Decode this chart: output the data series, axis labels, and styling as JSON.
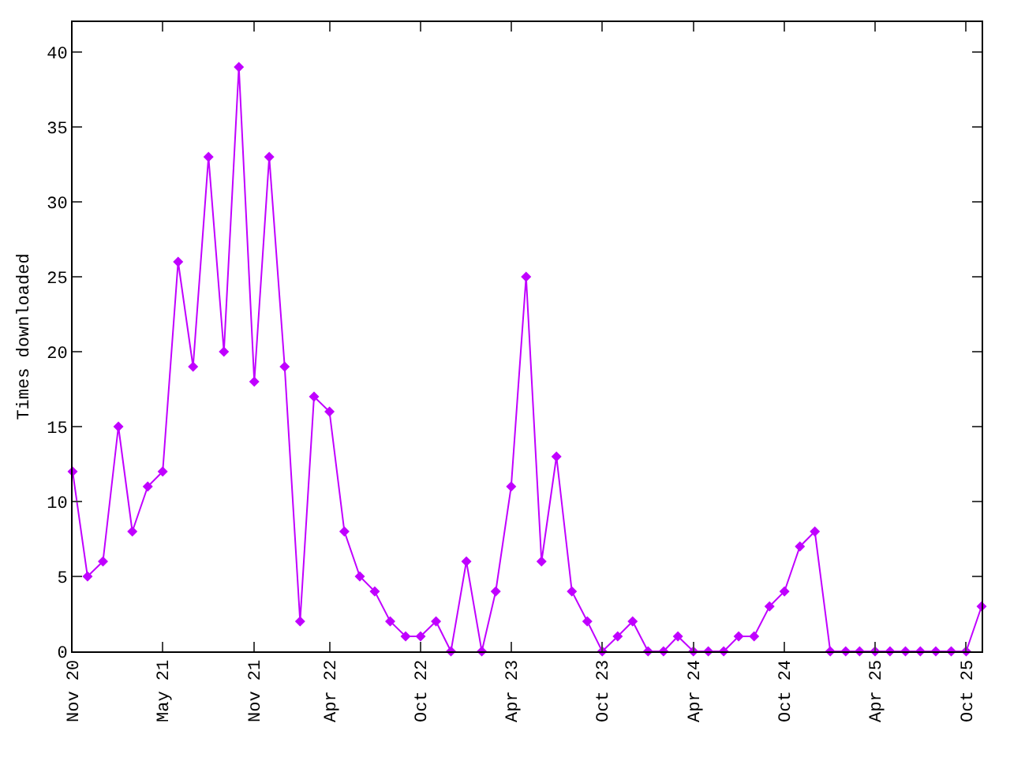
{
  "chart_data": {
    "type": "line",
    "ylabel": "Times downloaded",
    "x": [
      "2020-11",
      "2020-12",
      "2021-01",
      "2021-02",
      "2021-03",
      "2021-04",
      "2021-05",
      "2021-06",
      "2021-07",
      "2021-08",
      "2021-09",
      "2021-10",
      "2021-11",
      "2021-12",
      "2022-01",
      "2022-02",
      "2022-03",
      "2022-04",
      "2022-05",
      "2022-06",
      "2022-07",
      "2022-08",
      "2022-09",
      "2022-10",
      "2022-11",
      "2022-12",
      "2023-01",
      "2023-02",
      "2023-03",
      "2023-04",
      "2023-05",
      "2023-06",
      "2023-07",
      "2023-08",
      "2023-09",
      "2023-10",
      "2023-11",
      "2023-12",
      "2024-01",
      "2024-02",
      "2024-03",
      "2024-04",
      "2024-05",
      "2024-06",
      "2024-07",
      "2024-08",
      "2024-09",
      "2024-10",
      "2024-11",
      "2024-12",
      "2025-01",
      "2025-02",
      "2025-03",
      "2025-04",
      "2025-05",
      "2025-06",
      "2025-07",
      "2025-08",
      "2025-09",
      "2025-10",
      "2025-11"
    ],
    "series": [
      {
        "color": "#c000ff",
        "values": [
          12,
          5,
          6,
          15,
          8,
          11,
          12,
          26,
          19,
          33,
          20,
          39,
          18,
          33,
          19,
          2,
          17,
          16,
          8,
          5,
          4,
          2,
          1,
          1,
          2,
          0,
          6,
          0,
          4,
          11,
          25,
          6,
          13,
          4,
          2,
          0,
          1,
          2,
          0,
          0,
          1,
          0,
          0,
          0,
          1,
          1,
          3,
          4,
          7,
          8,
          0,
          0,
          0,
          0,
          0,
          0,
          0,
          0,
          0,
          0,
          3
        ]
      }
    ],
    "xlim": [
      "2020-11",
      "2025-11"
    ],
    "xticks": [
      {
        "value": "2020-11",
        "label": "Nov 20"
      },
      {
        "value": "2021-05",
        "label": "May 21"
      },
      {
        "value": "2021-11",
        "label": "Nov 21"
      },
      {
        "value": "2022-04",
        "label": "Apr 22"
      },
      {
        "value": "2022-10",
        "label": "Oct 22"
      },
      {
        "value": "2023-04",
        "label": "Apr 23"
      },
      {
        "value": "2023-10",
        "label": "Oct 23"
      },
      {
        "value": "2024-04",
        "label": "Apr 24"
      },
      {
        "value": "2024-10",
        "label": "Oct 24"
      },
      {
        "value": "2025-04",
        "label": "Apr 25"
      },
      {
        "value": "2025-10",
        "label": "Oct 25"
      }
    ],
    "ylim": [
      0,
      42
    ],
    "yticks": [
      0,
      5,
      10,
      15,
      20,
      25,
      30,
      35,
      40
    ],
    "legend": false,
    "marker": "diamond",
    "line_style": "solid"
  }
}
